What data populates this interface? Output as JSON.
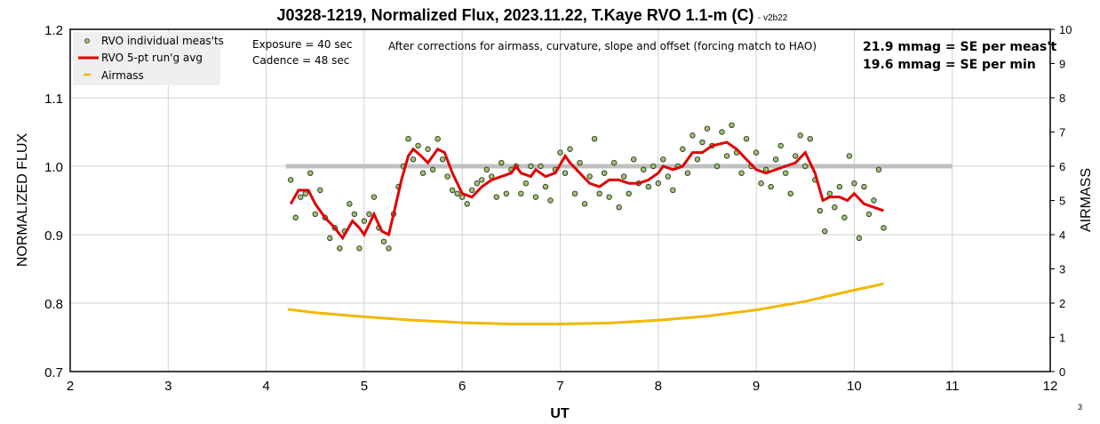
{
  "chart_data": {
    "type": "scatter",
    "title": "J0328-1219, Normalized Flux, 2023.11.22, T.Kaye RVO 1.1-m (C)",
    "version": "- v2b22",
    "xlabel": "UT",
    "ylabel": "NORMALIZED FLUX",
    "y2label": "AIRMASS",
    "xlim": [
      2,
      12
    ],
    "ylim": [
      0.7,
      1.2
    ],
    "y2lim": [
      0,
      10
    ],
    "xticks": [
      "2",
      "3",
      "4",
      "5",
      "6",
      "7",
      "8",
      "9",
      "10",
      "11",
      "12"
    ],
    "yticks": [
      "0.7",
      "0.8",
      "0.9",
      "1.0",
      "1.1",
      "1.2"
    ],
    "y2ticks": [
      "0",
      "1",
      "2",
      "3",
      "4",
      "5",
      "6",
      "7",
      "8",
      "9",
      "10"
    ],
    "grid": true,
    "legend_position": "top-left",
    "legend": [
      "RVO individual meas'ts",
      "RVO 5-pt run'g avg",
      "Airmass"
    ],
    "annotations": {
      "exposure": "Exposure = 40 sec",
      "cadence": "Cadence  = 48 sec",
      "corrections": "After corrections for airmass, curvature, slope and offset (forcing match to HAO)",
      "se_meas": "21.9 mmag = SE per meas't",
      "se_min": "19.6 mmag = SE per min",
      "page_number": "3"
    },
    "reference_line": {
      "y": 1.0,
      "x": [
        4.2,
        11.0
      ],
      "color": "#bfbfbf"
    },
    "colors": {
      "points": "#9bc36b",
      "avg": "#e00000",
      "airmass": "#f2b800"
    },
    "measurements": {
      "x_start": 4.25,
      "x_step": 0.05,
      "y": [
        0.98,
        0.925,
        0.955,
        0.96,
        0.99,
        0.93,
        0.965,
        0.925,
        0.895,
        0.91,
        0.88,
        0.905,
        0.945,
        0.93,
        0.88,
        0.92,
        0.93,
        0.955,
        0.91,
        0.89,
        0.88,
        0.93,
        0.97,
        1.0,
        1.04,
        1.01,
        1.03,
        0.99,
        1.025,
        0.995,
        1.04,
        1.01,
        0.985,
        0.965,
        0.96,
        0.955,
        0.945,
        0.965,
        0.975,
        0.98,
        0.995,
        0.985,
        0.955,
        1.005,
        0.96,
        0.995,
        1.0,
        0.96,
        0.975,
        1.0,
        0.955,
        1.0,
        0.97,
        0.95,
        0.995,
        1.02,
        0.99,
        1.025,
        0.96,
        1.005,
        0.945,
        0.985,
        1.04,
        0.96,
        0.99,
        0.955,
        1.005,
        0.94,
        0.985,
        0.96,
        1.01,
        0.975,
        0.995,
        0.97,
        1.0,
        0.975,
        1.01,
        0.985,
        0.965,
        1.0,
        1.025,
        0.99,
        1.045,
        1.01,
        1.035,
        1.055,
        1.03,
        1.0,
        1.05,
        1.015,
        1.06,
        1.02,
        0.99,
        1.04,
        1.0,
        1.02,
        0.975,
        0.995,
        0.97,
        1.01,
        1.03,
        0.99,
        0.96,
        1.015,
        1.045,
        1.0,
        1.04,
        0.98,
        0.935,
        0.905,
        0.96,
        0.94,
        0.97,
        0.925,
        1.015,
        0.975,
        0.895,
        0.97,
        0.93,
        0.95,
        0.995,
        0.91
      ]
    },
    "running_avg": {
      "x": [
        4.25,
        4.33,
        4.43,
        4.5,
        4.6,
        4.7,
        4.78,
        4.88,
        4.95,
        5.0,
        5.1,
        5.18,
        5.25,
        5.3,
        5.38,
        5.45,
        5.5,
        5.58,
        5.65,
        5.75,
        5.82,
        5.9,
        6.0,
        6.1,
        6.2,
        6.3,
        6.4,
        6.5,
        6.55,
        6.6,
        6.7,
        6.75,
        6.85,
        6.95,
        7.05,
        7.1,
        7.2,
        7.3,
        7.4,
        7.5,
        7.6,
        7.7,
        7.8,
        7.9,
        8.0,
        8.05,
        8.15,
        8.25,
        8.35,
        8.45,
        8.55,
        8.7,
        8.8,
        8.9,
        9.0,
        9.1,
        9.2,
        9.3,
        9.4,
        9.5,
        9.6,
        9.68,
        9.75,
        9.85,
        9.93,
        10.0,
        10.1,
        10.2,
        10.3
      ],
      "y": [
        0.945,
        0.965,
        0.965,
        0.945,
        0.925,
        0.91,
        0.895,
        0.92,
        0.91,
        0.9,
        0.93,
        0.905,
        0.9,
        0.93,
        0.98,
        1.015,
        1.025,
        1.015,
        1.005,
        1.025,
        1.02,
        0.99,
        0.96,
        0.955,
        0.97,
        0.98,
        0.985,
        0.99,
        1.0,
        0.99,
        0.985,
        0.995,
        0.985,
        0.99,
        1.015,
        1.005,
        0.99,
        0.975,
        0.97,
        0.98,
        0.98,
        0.975,
        0.975,
        0.98,
        0.99,
        1.0,
        0.995,
        1.0,
        1.02,
        1.02,
        1.03,
        1.035,
        1.025,
        1.01,
        0.995,
        0.99,
        0.995,
        1.0,
        1.005,
        1.02,
        0.99,
        0.95,
        0.955,
        0.955,
        0.95,
        0.96,
        0.945,
        0.94,
        0.935
      ]
    },
    "airmass": {
      "x": [
        4.22,
        4.5,
        5.0,
        5.5,
        6.0,
        6.5,
        7.0,
        7.5,
        8.0,
        8.5,
        9.0,
        9.5,
        9.8,
        10.0,
        10.2,
        10.3
      ],
      "y": [
        1.82,
        1.72,
        1.6,
        1.5,
        1.43,
        1.39,
        1.39,
        1.42,
        1.5,
        1.62,
        1.8,
        2.05,
        2.25,
        2.38,
        2.5,
        2.57
      ]
    }
  }
}
